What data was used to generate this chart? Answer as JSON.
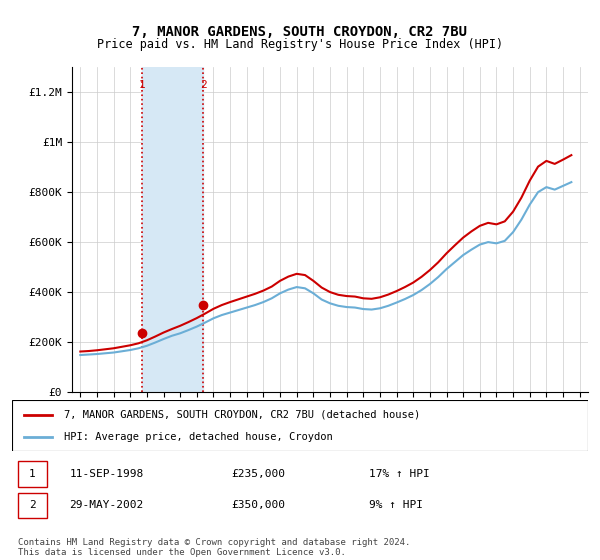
{
  "title": "7, MANOR GARDENS, SOUTH CROYDON, CR2 7BU",
  "subtitle": "Price paid vs. HM Land Registry's House Price Index (HPI)",
  "legend_line1": "7, MANOR GARDENS, SOUTH CROYDON, CR2 7BU (detached house)",
  "legend_line2": "HPI: Average price, detached house, Croydon",
  "footer": "Contains HM Land Registry data © Crown copyright and database right 2024.\nThis data is licensed under the Open Government Licence v3.0.",
  "transaction1_label": "1",
  "transaction1_date": "11-SEP-1998",
  "transaction1_price": "£235,000",
  "transaction1_hpi": "17% ↑ HPI",
  "transaction2_label": "2",
  "transaction2_date": "29-MAY-2002",
  "transaction2_price": "£350,000",
  "transaction2_hpi": "9% ↑ HPI",
  "sale1_x": 1998.7,
  "sale1_y": 235000,
  "sale2_x": 2002.4,
  "sale2_y": 350000,
  "shade_x1": 1998.7,
  "shade_x2": 2002.4,
  "ylim_min": 0,
  "ylim_max": 1300000,
  "xlim_min": 1994.5,
  "xlim_max": 2025.5,
  "hpi_color": "#6baed6",
  "sale_color": "#cc0000",
  "shade_color": "#d6e8f5",
  "marker_color": "#cc0000",
  "yticks": [
    0,
    200000,
    400000,
    600000,
    800000,
    1000000,
    1200000
  ],
  "ytick_labels": [
    "£0",
    "£200K",
    "£400K",
    "£600K",
    "£800K",
    "£1M",
    "£1.2M"
  ],
  "xticks": [
    1995,
    1996,
    1997,
    1998,
    1999,
    2000,
    2001,
    2002,
    2003,
    2004,
    2005,
    2006,
    2007,
    2008,
    2009,
    2010,
    2011,
    2012,
    2013,
    2014,
    2015,
    2016,
    2017,
    2018,
    2019,
    2020,
    2021,
    2022,
    2023,
    2024,
    2025
  ],
  "hpi_years": [
    1995,
    1995.5,
    1996,
    1996.5,
    1997,
    1997.5,
    1998,
    1998.5,
    1999,
    1999.5,
    2000,
    2000.5,
    2001,
    2001.5,
    2002,
    2002.5,
    2003,
    2003.5,
    2004,
    2004.5,
    2005,
    2005.5,
    2006,
    2006.5,
    2007,
    2007.5,
    2008,
    2008.5,
    2009,
    2009.5,
    2010,
    2010.5,
    2011,
    2011.5,
    2012,
    2012.5,
    2013,
    2013.5,
    2014,
    2014.5,
    2015,
    2015.5,
    2016,
    2016.5,
    2017,
    2017.5,
    2018,
    2018.5,
    2019,
    2019.5,
    2020,
    2020.5,
    2021,
    2021.5,
    2022,
    2022.5,
    2023,
    2023.5,
    2024,
    2024.5
  ],
  "hpi_values": [
    148000,
    150000,
    152000,
    155000,
    158000,
    163000,
    168000,
    175000,
    185000,
    198000,
    212000,
    225000,
    235000,
    248000,
    262000,
    278000,
    295000,
    308000,
    318000,
    328000,
    338000,
    348000,
    360000,
    375000,
    395000,
    410000,
    420000,
    415000,
    395000,
    370000,
    355000,
    345000,
    340000,
    338000,
    332000,
    330000,
    335000,
    345000,
    358000,
    372000,
    388000,
    408000,
    432000,
    460000,
    492000,
    520000,
    548000,
    570000,
    590000,
    600000,
    595000,
    605000,
    640000,
    690000,
    750000,
    800000,
    820000,
    810000,
    825000,
    840000
  ],
  "sale_line_years": [
    1995,
    1995.5,
    1996,
    1996.5,
    1997,
    1997.5,
    1998,
    1998.5,
    1999,
    1999.5,
    2000,
    2000.5,
    2001,
    2001.5,
    2002,
    2002.5,
    2003,
    2003.5,
    2004,
    2004.5,
    2005,
    2005.5,
    2006,
    2006.5,
    2007,
    2007.5,
    2008,
    2008.5,
    2009,
    2009.5,
    2010,
    2010.5,
    2011,
    2011.5,
    2012,
    2012.5,
    2013,
    2013.5,
    2014,
    2014.5,
    2015,
    2015.5,
    2016,
    2016.5,
    2017,
    2017.5,
    2018,
    2018.5,
    2019,
    2019.5,
    2020,
    2020.5,
    2021,
    2021.5,
    2022,
    2022.5,
    2023,
    2023.5,
    2024,
    2024.5
  ],
  "sale_line_values": [
    162000,
    164000,
    167000,
    171000,
    175000,
    181000,
    187000,
    195000,
    207000,
    222000,
    238000,
    252000,
    265000,
    280000,
    296000,
    314000,
    333000,
    348000,
    360000,
    371000,
    382000,
    393000,
    406000,
    422000,
    445000,
    462000,
    473000,
    468000,
    445000,
    418000,
    400000,
    389000,
    384000,
    382000,
    375000,
    373000,
    379000,
    390000,
    404000,
    420000,
    438000,
    461000,
    488000,
    519000,
    555000,
    587000,
    618000,
    643000,
    665000,
    677000,
    671000,
    683000,
    722000,
    778000,
    846000,
    902000,
    925000,
    913000,
    930000,
    948000
  ]
}
